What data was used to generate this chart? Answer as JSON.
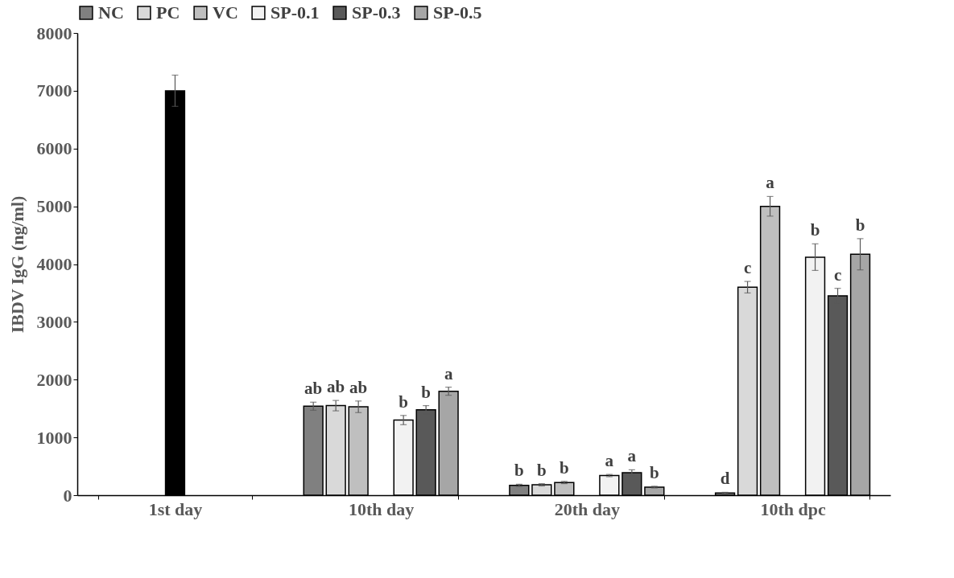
{
  "chart_data": {
    "type": "bar",
    "ylabel": "IBDV IgG (ng/ml)",
    "categories": [
      "1st day",
      "10th day",
      "20th day",
      "10th dpc"
    ],
    "series": [
      {
        "name": "NC",
        "color": "#808080",
        "values": [
          null,
          1540,
          170,
          40
        ],
        "errors": [
          null,
          70,
          20,
          10
        ],
        "value_labels": [
          null,
          "ab",
          "b",
          "d"
        ]
      },
      {
        "name": "PC",
        "color": "#d9d9d9",
        "values": [
          null,
          1550,
          180,
          3600
        ],
        "errors": [
          null,
          90,
          20,
          100
        ],
        "value_labels": [
          null,
          "ab",
          "b",
          "c"
        ]
      },
      {
        "name": "VC",
        "color": "#bfbfbf",
        "values": [
          null,
          1530,
          220,
          5000
        ],
        "errors": [
          null,
          100,
          20,
          170
        ],
        "value_labels": [
          null,
          "ab",
          "b",
          "a"
        ]
      },
      {
        "color": "#000000",
        "values": [
          7000,
          null,
          null,
          null
        ],
        "errors": [
          270,
          null,
          null,
          null
        ]
      },
      {
        "name": "SP-0.1",
        "color": "#f2f2f2",
        "values": [
          null,
          1300,
          340,
          4120
        ],
        "errors": [
          null,
          80,
          20,
          230
        ],
        "value_labels": [
          null,
          "b",
          "a",
          "b"
        ]
      },
      {
        "name": "SP-0.3",
        "color": "#595959",
        "values": [
          null,
          1480,
          390,
          3450
        ],
        "errors": [
          null,
          70,
          50,
          130
        ],
        "value_labels": [
          null,
          "b",
          "a",
          "c"
        ]
      },
      {
        "name": "SP-0.5",
        "color": "#a6a6a6",
        "values": [
          null,
          1800,
          140,
          4170
        ],
        "errors": [
          null,
          70,
          15,
          270
        ],
        "value_labels": [
          null,
          "a",
          "b",
          "b"
        ]
      }
    ],
    "ylim": [
      0,
      8000
    ],
    "yticks": [
      0,
      1000,
      2000,
      3000,
      4000,
      5000,
      6000,
      7000,
      8000
    ],
    "grid": false,
    "legend": "top"
  }
}
